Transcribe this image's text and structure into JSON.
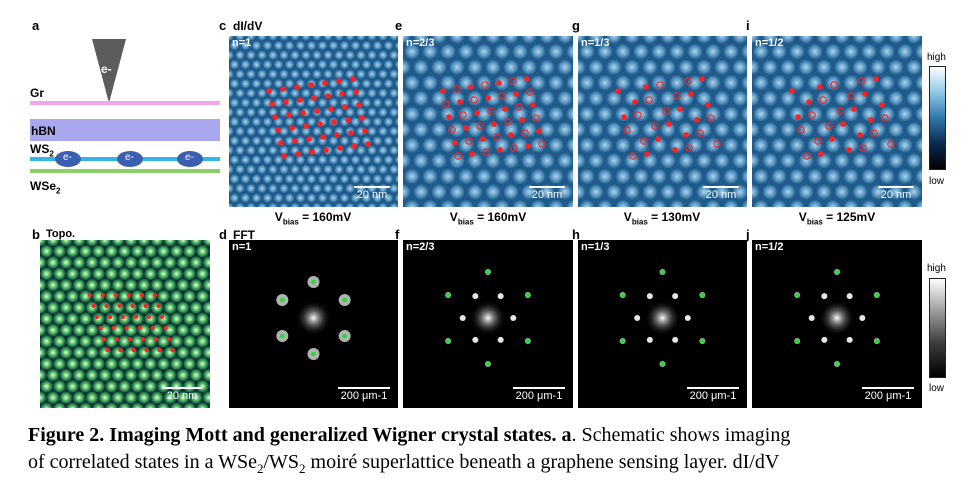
{
  "figure": {
    "panel_letters": {
      "a": "a",
      "b": "b",
      "c": "c",
      "d": "d",
      "e": "e",
      "f": "f",
      "g": "g",
      "h": "h",
      "i": "i",
      "j": "j"
    },
    "schematic": {
      "tip_label": "e-",
      "layers": [
        "Gr",
        "hBN",
        "WS2",
        "WSe2"
      ],
      "electron_label": "e-",
      "colors": {
        "gr": "#f2a4ec",
        "hbn": "#a9a8ee",
        "ws2": "#32b5e8",
        "wse2": "#8bd168",
        "tip": "#5c5c5c",
        "electron": "#3a5fb0"
      }
    },
    "topo": {
      "title": "Topo.",
      "scale_label": "20 nm"
    },
    "didv_title": "dI/dV",
    "fft_title": "FFT",
    "didv_panels": [
      {
        "n": "n=1",
        "scale": "20 nm",
        "vbias_prefix": "V",
        "vbias_sub": "bias",
        "vbias_value": " = 160mV"
      },
      {
        "n": "n=2/3",
        "scale": "20 nm",
        "vbias_prefix": "V",
        "vbias_sub": "bias",
        "vbias_value": " = 160mV"
      },
      {
        "n": "n=1/3",
        "scale": "20 nm",
        "vbias_prefix": "V",
        "vbias_sub": "bias",
        "vbias_value": " = 130mV"
      },
      {
        "n": "n=1/2",
        "scale": "20 nm",
        "vbias_prefix": "V",
        "vbias_sub": "bias",
        "vbias_value": " = 125mV"
      }
    ],
    "fft_panels": [
      {
        "n": "n=1",
        "scale": "200 μm-1"
      },
      {
        "n": "n=2/3",
        "scale": "200 μm-1"
      },
      {
        "n": "n=1/3",
        "scale": "200 μm-1"
      },
      {
        "n": "n=1/2",
        "scale": "200 μm-1"
      }
    ],
    "colorbar_top": {
      "high": "high",
      "low": "low"
    },
    "colorbar_bottom": {
      "high": "high",
      "low": "low"
    }
  },
  "caption": {
    "bold": "Figure 2. Imaging Mott and generalized Wigner crystal states. a",
    "line1_rest": ". Schematic shows imaging",
    "line2_a": "of correlated states in a WSe",
    "sub1": "2",
    "line2_b": "/WS",
    "sub2": "2",
    "line2_c": " moiré superlattice beneath a graphene sensing layer. dI/dV"
  }
}
